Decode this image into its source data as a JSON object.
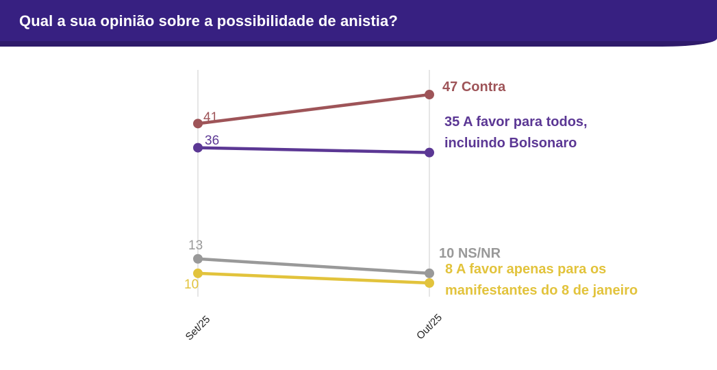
{
  "header": {
    "title": "Qual a sua opinião sobre a possibilidade de anistia?",
    "bg_color": "#372081",
    "text_color": "#FFFFFF"
  },
  "chart_data": {
    "type": "line",
    "subtype": "slope",
    "title": "Qual a sua opinião sobre a possibilidade de anistia?",
    "x": [
      "Set/25",
      "Out/25"
    ],
    "xlabel": "",
    "ylabel": "",
    "ylim": [
      0,
      52
    ],
    "grid": "vertical-gridlines-only",
    "legend": "end-of-line-labels",
    "series": [
      {
        "name": "Contra",
        "values": [
          41,
          47
        ],
        "color": "#9E5458"
      },
      {
        "name": "A favor para todos, incluindo Bolsonaro",
        "values": [
          36,
          35
        ],
        "color": "#5B3794"
      },
      {
        "name": "NS/NR",
        "values": [
          13,
          10
        ],
        "color": "#999999"
      },
      {
        "name": "A favor apenas para os manifestantes do 8 de janeiro",
        "values": [
          10,
          8
        ],
        "color": "#E2C33C"
      }
    ]
  }
}
